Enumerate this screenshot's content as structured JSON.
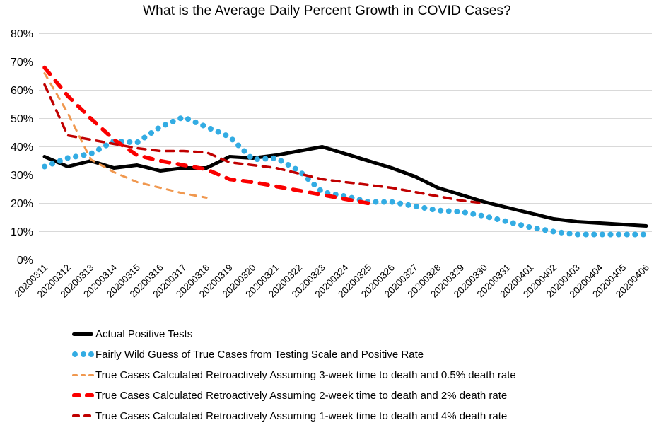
{
  "chart_data": {
    "type": "line",
    "title": "What is the Average Daily Percent Growth in COVID Cases?",
    "x_categories": [
      "20200311",
      "20200312",
      "20200313",
      "20200314",
      "20200315",
      "20200316",
      "20200317",
      "20200318",
      "20200319",
      "20200320",
      "20200321",
      "20200322",
      "20200323",
      "20200324",
      "20200325",
      "20200326",
      "20200327",
      "20200328",
      "20200329",
      "20200330",
      "20200331",
      "20200401",
      "20200402",
      "20200403",
      "20200404",
      "20200405",
      "20200406"
    ],
    "y_axis": {
      "min": 0,
      "max": 80,
      "step": 10,
      "tick_labels": [
        "0%",
        "10%",
        "20%",
        "30%",
        "40%",
        "50%",
        "60%",
        "70%",
        "80%"
      ]
    },
    "grid": "horizontal",
    "legend_position": "bottom-left",
    "colors": {
      "gridline": "#D9D9D9",
      "text": "#000000"
    },
    "series": [
      {
        "name": "Actual Positive Tests",
        "color": "#000000",
        "style": "solid-thick",
        "values": [
          36.5,
          33,
          35,
          32.5,
          33.5,
          31.5,
          32.5,
          32.5,
          36.5,
          36,
          37,
          38.5,
          40,
          37.5,
          35,
          32.5,
          29.5,
          25.5,
          23,
          20.5,
          18.5,
          16.5,
          14.5,
          13.5,
          13,
          12.5,
          12
        ]
      },
      {
        "name": "Fairly Wild Guess of True Cases from Testing Scale and Positive Rate",
        "color": "#33ACE3",
        "style": "dotted",
        "values": [
          33,
          36,
          37.5,
          42,
          41.5,
          47,
          50.5,
          47,
          43.5,
          35.5,
          36,
          31.5,
          24,
          22.5,
          20.5,
          20.5,
          19,
          17.5,
          17,
          15.5,
          13.5,
          11.5,
          10,
          9,
          9,
          9,
          9
        ]
      },
      {
        "name": "True Cases Calculated Retroactively Assuming 3-week time to death and 0.5% death rate",
        "color": "#F0984F",
        "style": "dashed-thin",
        "values": [
          66,
          52,
          35.5,
          31,
          27.5,
          25.5,
          23.5,
          22
        ]
      },
      {
        "name": "True Cases Calculated Retroactively Assuming 2-week time to death and 2% death rate",
        "color": "#FA0000",
        "style": "dashed-thick",
        "values": [
          68,
          58,
          50,
          42.5,
          37,
          35,
          33.5,
          32,
          28.5,
          27.5,
          26,
          24.5,
          23,
          21.5,
          20
        ]
      },
      {
        "name": "True Cases Calculated Retroactively Assuming 1-week time to death and 4% death rate",
        "color": "#C00000",
        "style": "dashed-medium",
        "values": [
          62,
          44,
          42.5,
          41,
          39.5,
          38.5,
          38.5,
          38,
          34.5,
          33.5,
          32.5,
          30.5,
          28.5,
          27.5,
          26.5,
          25.5,
          24,
          22.5,
          21,
          20
        ]
      }
    ]
  }
}
